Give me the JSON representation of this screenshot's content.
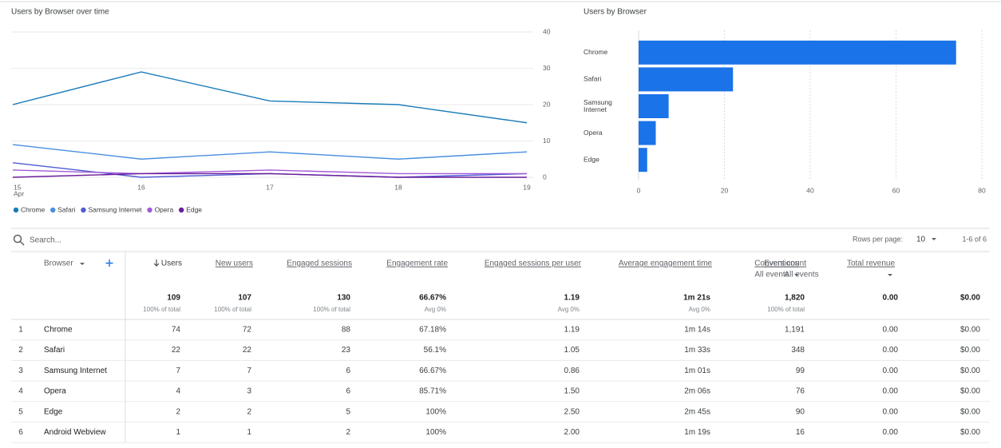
{
  "chart_data": [
    {
      "type": "line",
      "title": "Users by Browser over time",
      "categories": [
        "15",
        "16",
        "17",
        "18",
        "19"
      ],
      "month_label": "Apr",
      "series": [
        {
          "name": "Chrome",
          "color": "#1a7bb9",
          "values": [
            20,
            29,
            21,
            20,
            15
          ]
        },
        {
          "name": "Safari",
          "color": "#4a8fe0",
          "values": [
            9,
            5,
            7,
            5,
            7
          ]
        },
        {
          "name": "Samsung Internet",
          "color": "#4f5bd5",
          "values": [
            4,
            0,
            1,
            0,
            1
          ]
        },
        {
          "name": "Opera",
          "color": "#a35bd8",
          "values": [
            2,
            1,
            2,
            1,
            1
          ]
        },
        {
          "name": "Edge",
          "color": "#6a1b9a",
          "values": [
            0,
            1,
            1,
            0,
            0
          ]
        }
      ],
      "ylim": [
        0,
        40
      ],
      "yticks": [
        0,
        10,
        20,
        30,
        40
      ],
      "grid": true,
      "y_axis_side": "right"
    },
    {
      "type": "bar",
      "orientation": "horizontal",
      "title": "Users by Browser",
      "categories": [
        "Chrome",
        "Safari",
        "Samsung Internet",
        "Opera",
        "Edge"
      ],
      "values": [
        74,
        22,
        7,
        4,
        2
      ],
      "color": "#1a73e8",
      "xlim": [
        0,
        80
      ],
      "xticks": [
        0,
        20,
        40,
        60,
        80
      ],
      "grid": true
    }
  ],
  "table": {
    "search_placeholder": "Search...",
    "rows_per_page_label": "Rows per page:",
    "rows_per_page": "10",
    "pagination": "1-6 of 6",
    "columns": [
      {
        "label": "Browser"
      },
      {
        "label": "Users"
      },
      {
        "label": "New users"
      },
      {
        "label": "Engaged sessions"
      },
      {
        "label": "Engagement rate"
      },
      {
        "label": "Engaged sessions per user"
      },
      {
        "label": "Average engagement time"
      },
      {
        "label": "Event count",
        "sublabel": "All events"
      },
      {
        "label": "Conversions",
        "sublabel": "All events"
      },
      {
        "label": "Total revenue"
      }
    ],
    "totals": [
      {
        "value": "109",
        "note": "100% of total"
      },
      {
        "value": "107",
        "note": "100% of total"
      },
      {
        "value": "130",
        "note": "100% of total"
      },
      {
        "value": "66.67%",
        "note": "Avg 0%"
      },
      {
        "value": "1.19",
        "note": "Avg 0%"
      },
      {
        "value": "1m 21s",
        "note": "Avg 0%"
      },
      {
        "value": "1,820",
        "note": "100% of total"
      },
      {
        "value": "0.00"
      },
      {
        "value": "$0.00"
      }
    ],
    "rows": [
      [
        "1",
        "Chrome",
        "74",
        "72",
        "88",
        "67.18%",
        "1.19",
        "1m 14s",
        "1,191",
        "0.00",
        "$0.00"
      ],
      [
        "2",
        "Safari",
        "22",
        "22",
        "23",
        "56.1%",
        "1.05",
        "1m 33s",
        "348",
        "0.00",
        "$0.00"
      ],
      [
        "3",
        "Samsung Internet",
        "7",
        "7",
        "6",
        "66.67%",
        "0.86",
        "1m 01s",
        "99",
        "0.00",
        "$0.00"
      ],
      [
        "4",
        "Opera",
        "4",
        "3",
        "6",
        "85.71%",
        "1.50",
        "2m 06s",
        "76",
        "0.00",
        "$0.00"
      ],
      [
        "5",
        "Edge",
        "2",
        "2",
        "5",
        "100%",
        "2.50",
        "2m 45s",
        "90",
        "0.00",
        "$0.00"
      ],
      [
        "6",
        "Android Webview",
        "1",
        "1",
        "2",
        "100%",
        "2.00",
        "1m 19s",
        "16",
        "0.00",
        "$0.00"
      ]
    ]
  }
}
